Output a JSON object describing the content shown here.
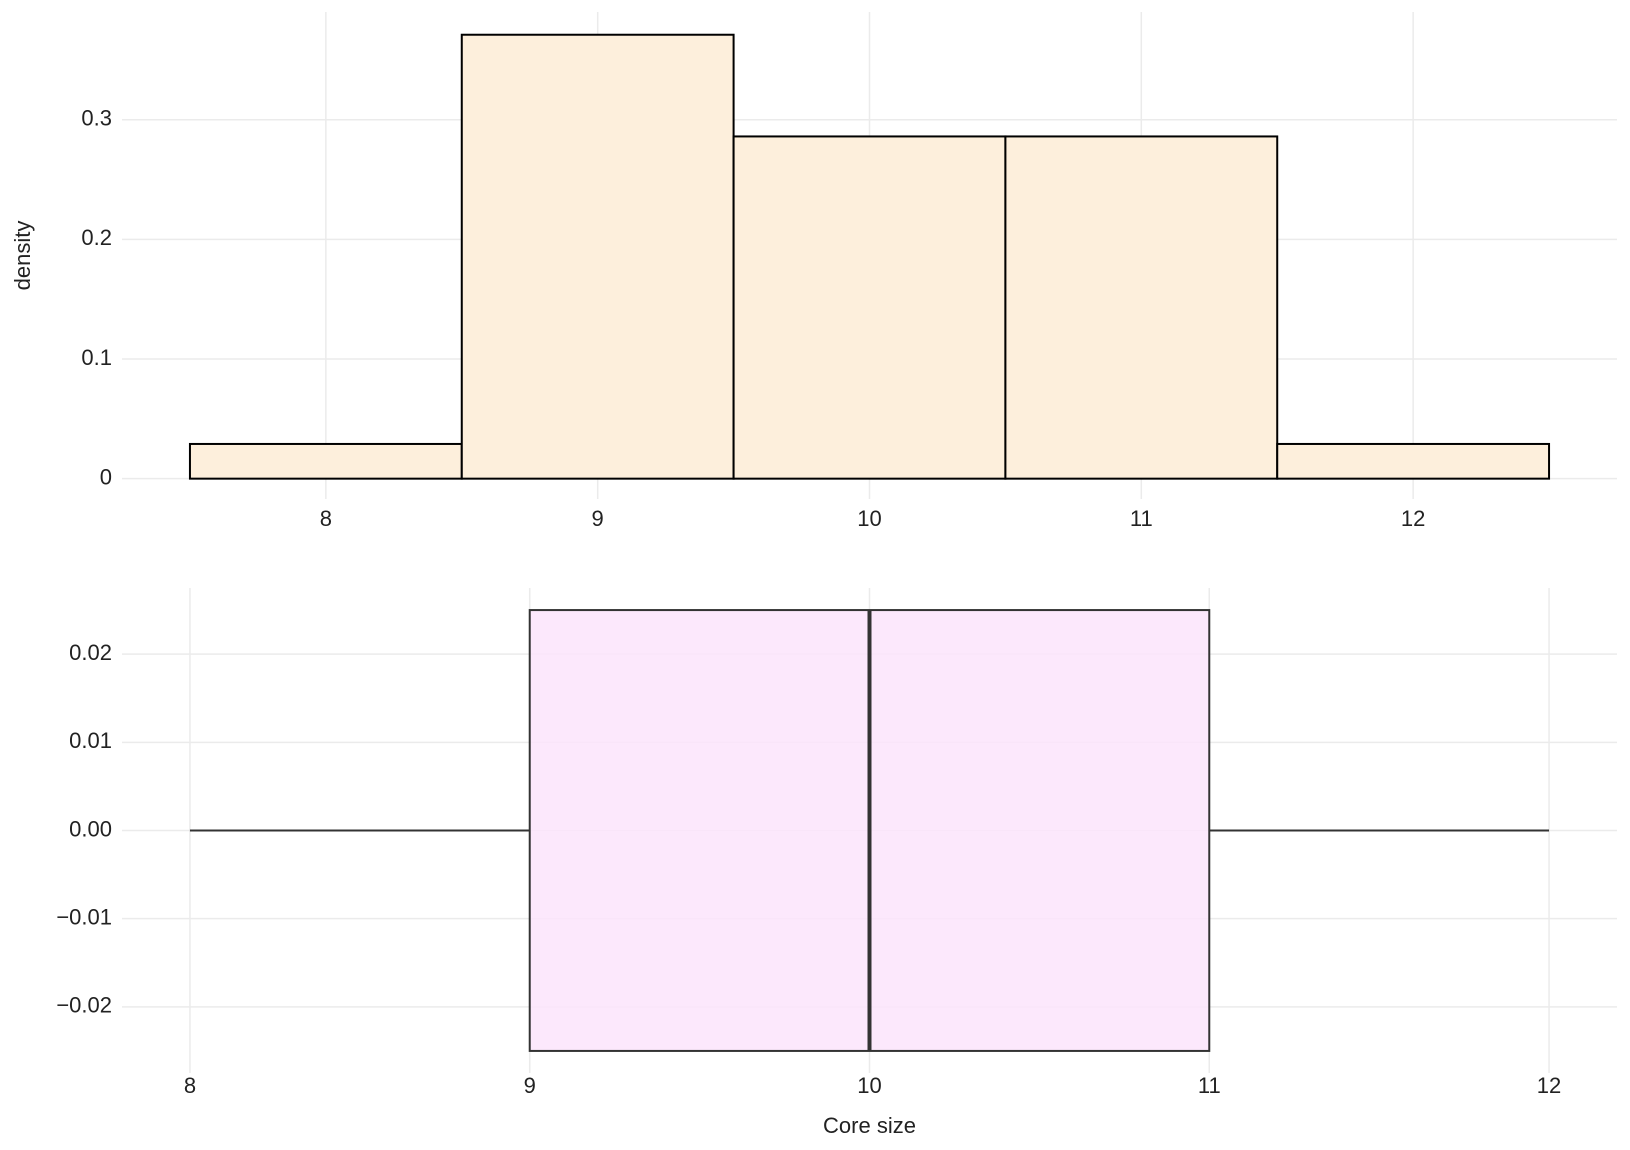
{
  "chart_data": [
    {
      "type": "histogram",
      "ylabel": "density",
      "bins": [
        7.5,
        8.5,
        9.5,
        10.5,
        11.5,
        12.5
      ],
      "values": [
        0.029,
        0.371,
        0.286,
        0.286,
        0.029
      ],
      "color": "#fdefdc",
      "edgecolor": "#000000",
      "xlim": [
        7.25,
        12.75
      ],
      "xticks": [
        8,
        9,
        10,
        11,
        12
      ],
      "ylim": [
        -0.017,
        0.39
      ],
      "yticks": [
        0.0,
        0.1,
        0.2,
        0.3
      ],
      "grid": true
    },
    {
      "type": "boxplot",
      "xlabel": "Core size",
      "min": 8,
      "q1": 9,
      "median": 10,
      "q3": 11,
      "max": 12,
      "color": "#fce4fc",
      "edgecolor": "#333333",
      "xlim": [
        7.8,
        12.2
      ],
      "xticks": [
        8,
        9,
        10,
        11,
        12
      ],
      "ylim": [
        -0.0275,
        0.0275
      ],
      "yticks": [
        {
          "value": -0.02,
          "label": "−0.02"
        },
        {
          "value": -0.01,
          "label": "−0.01"
        },
        {
          "value": 0,
          "label": "0.00"
        },
        {
          "value": 0.01,
          "label": "0.01"
        },
        {
          "value": 0.02,
          "label": "0.02"
        }
      ],
      "grid": true
    }
  ]
}
